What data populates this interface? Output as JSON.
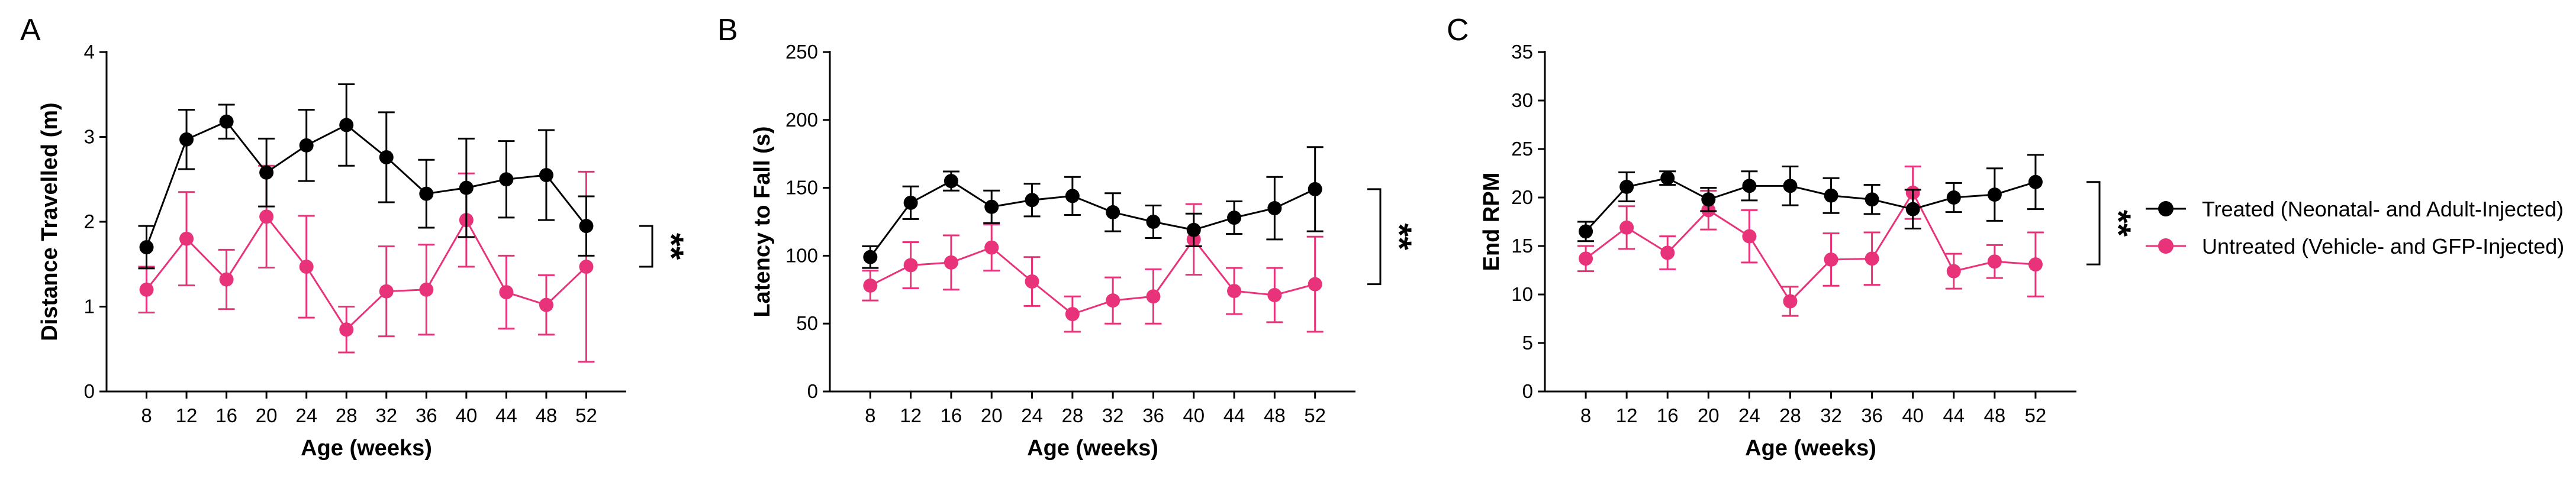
{
  "figure": {
    "legend": [
      {
        "label": "Treated (Neonatal- and Adult-Injected)",
        "color": "#000000"
      },
      {
        "label": "Untreated (Vehicle- and GFP-Injected)",
        "color": "#E8337A"
      }
    ]
  },
  "chart_data": [
    {
      "type": "line",
      "panel": "A",
      "xlabel": "Age (weeks)",
      "ylabel": "Distance Travelled (m)",
      "x": [
        8,
        12,
        16,
        20,
        24,
        28,
        32,
        36,
        40,
        44,
        48,
        52
      ],
      "x_ticks": [
        "8",
        "12",
        "16",
        "20",
        "24",
        "28",
        "32",
        "36",
        "40",
        "44",
        "48",
        "52"
      ],
      "ylim": [
        0,
        4
      ],
      "y_ticks": [
        "0",
        "1",
        "2",
        "3",
        "4"
      ],
      "y_tick_values": [
        0,
        1,
        2,
        3,
        4
      ],
      "significance": "**",
      "series": [
        {
          "name": "Treated (Neonatal- and Adult-Injected)",
          "color": "#000000",
          "values": [
            1.7,
            2.97,
            3.18,
            2.58,
            2.9,
            3.14,
            2.76,
            2.33,
            2.4,
            2.5,
            2.55,
            1.95
          ],
          "error": [
            0.25,
            0.35,
            0.2,
            0.4,
            0.42,
            0.48,
            0.53,
            0.4,
            0.58,
            0.45,
            0.53,
            0.35
          ]
        },
        {
          "name": "Untreated (Vehicle- and GFP-Injected)",
          "color": "#E8337A",
          "values": [
            1.2,
            1.8,
            1.32,
            2.06,
            1.47,
            0.73,
            1.18,
            1.2,
            2.02,
            1.17,
            1.02,
            1.47
          ],
          "error": [
            0.27,
            0.55,
            0.35,
            0.6,
            0.6,
            0.27,
            0.53,
            0.53,
            0.55,
            0.43,
            0.35,
            1.12
          ]
        }
      ]
    },
    {
      "type": "line",
      "panel": "B",
      "xlabel": "Age (weeks)",
      "ylabel": "Latency to Fall (s)",
      "x": [
        8,
        12,
        16,
        20,
        24,
        28,
        32,
        36,
        40,
        44,
        48,
        52
      ],
      "x_ticks": [
        "8",
        "12",
        "16",
        "20",
        "24",
        "28",
        "32",
        "36",
        "40",
        "44",
        "48",
        "52"
      ],
      "ylim": [
        0,
        250
      ],
      "y_ticks": [
        "0",
        "50",
        "100",
        "150",
        "200",
        "250"
      ],
      "y_tick_values": [
        0,
        50,
        100,
        150,
        200,
        250
      ],
      "significance": "**",
      "series": [
        {
          "name": "Treated (Neonatal- and Adult-Injected)",
          "color": "#000000",
          "values": [
            99,
            139,
            155,
            136,
            141,
            144,
            132,
            125,
            119,
            128,
            135,
            149
          ],
          "error": [
            8,
            12,
            7,
            12,
            12,
            14,
            14,
            12,
            12,
            12,
            23,
            31
          ]
        },
        {
          "name": "Untreated (Vehicle- and GFP-Injected)",
          "color": "#E8337A",
          "values": [
            78,
            93,
            95,
            106,
            81,
            57,
            67,
            70,
            112,
            74,
            71,
            79
          ],
          "error": [
            11,
            17,
            20,
            17,
            18,
            13,
            17,
            20,
            26,
            17,
            20,
            35
          ]
        }
      ]
    },
    {
      "type": "line",
      "panel": "C",
      "xlabel": "Age (weeks)",
      "ylabel": "End RPM",
      "x": [
        8,
        12,
        16,
        20,
        24,
        28,
        32,
        36,
        40,
        44,
        48,
        52
      ],
      "x_ticks": [
        "8",
        "12",
        "16",
        "20",
        "24",
        "28",
        "32",
        "36",
        "40",
        "44",
        "48",
        "52"
      ],
      "ylim": [
        0,
        35
      ],
      "y_ticks": [
        "0",
        "5",
        "10",
        "15",
        "20",
        "25",
        "30",
        "35"
      ],
      "y_tick_values": [
        0,
        5,
        10,
        15,
        20,
        25,
        30,
        35
      ],
      "significance": "**",
      "series": [
        {
          "name": "Treated (Neonatal- and Adult-Injected)",
          "color": "#000000",
          "values": [
            16.5,
            21.1,
            22.0,
            19.8,
            21.2,
            21.2,
            20.2,
            19.8,
            18.8,
            20.0,
            20.3,
            21.6
          ],
          "error": [
            1.0,
            1.5,
            0.7,
            1.2,
            1.5,
            2.0,
            1.8,
            1.5,
            2.0,
            1.5,
            2.7,
            2.8
          ]
        },
        {
          "name": "Untreated (Vehicle- and GFP-Injected)",
          "color": "#E8337A",
          "values": [
            13.7,
            16.9,
            14.3,
            18.7,
            16.0,
            9.3,
            13.6,
            13.7,
            20.5,
            12.4,
            13.4,
            13.1
          ],
          "error": [
            1.3,
            2.2,
            1.7,
            2.0,
            2.7,
            1.5,
            2.7,
            2.7,
            2.7,
            1.8,
            1.7,
            3.3
          ]
        }
      ]
    }
  ]
}
